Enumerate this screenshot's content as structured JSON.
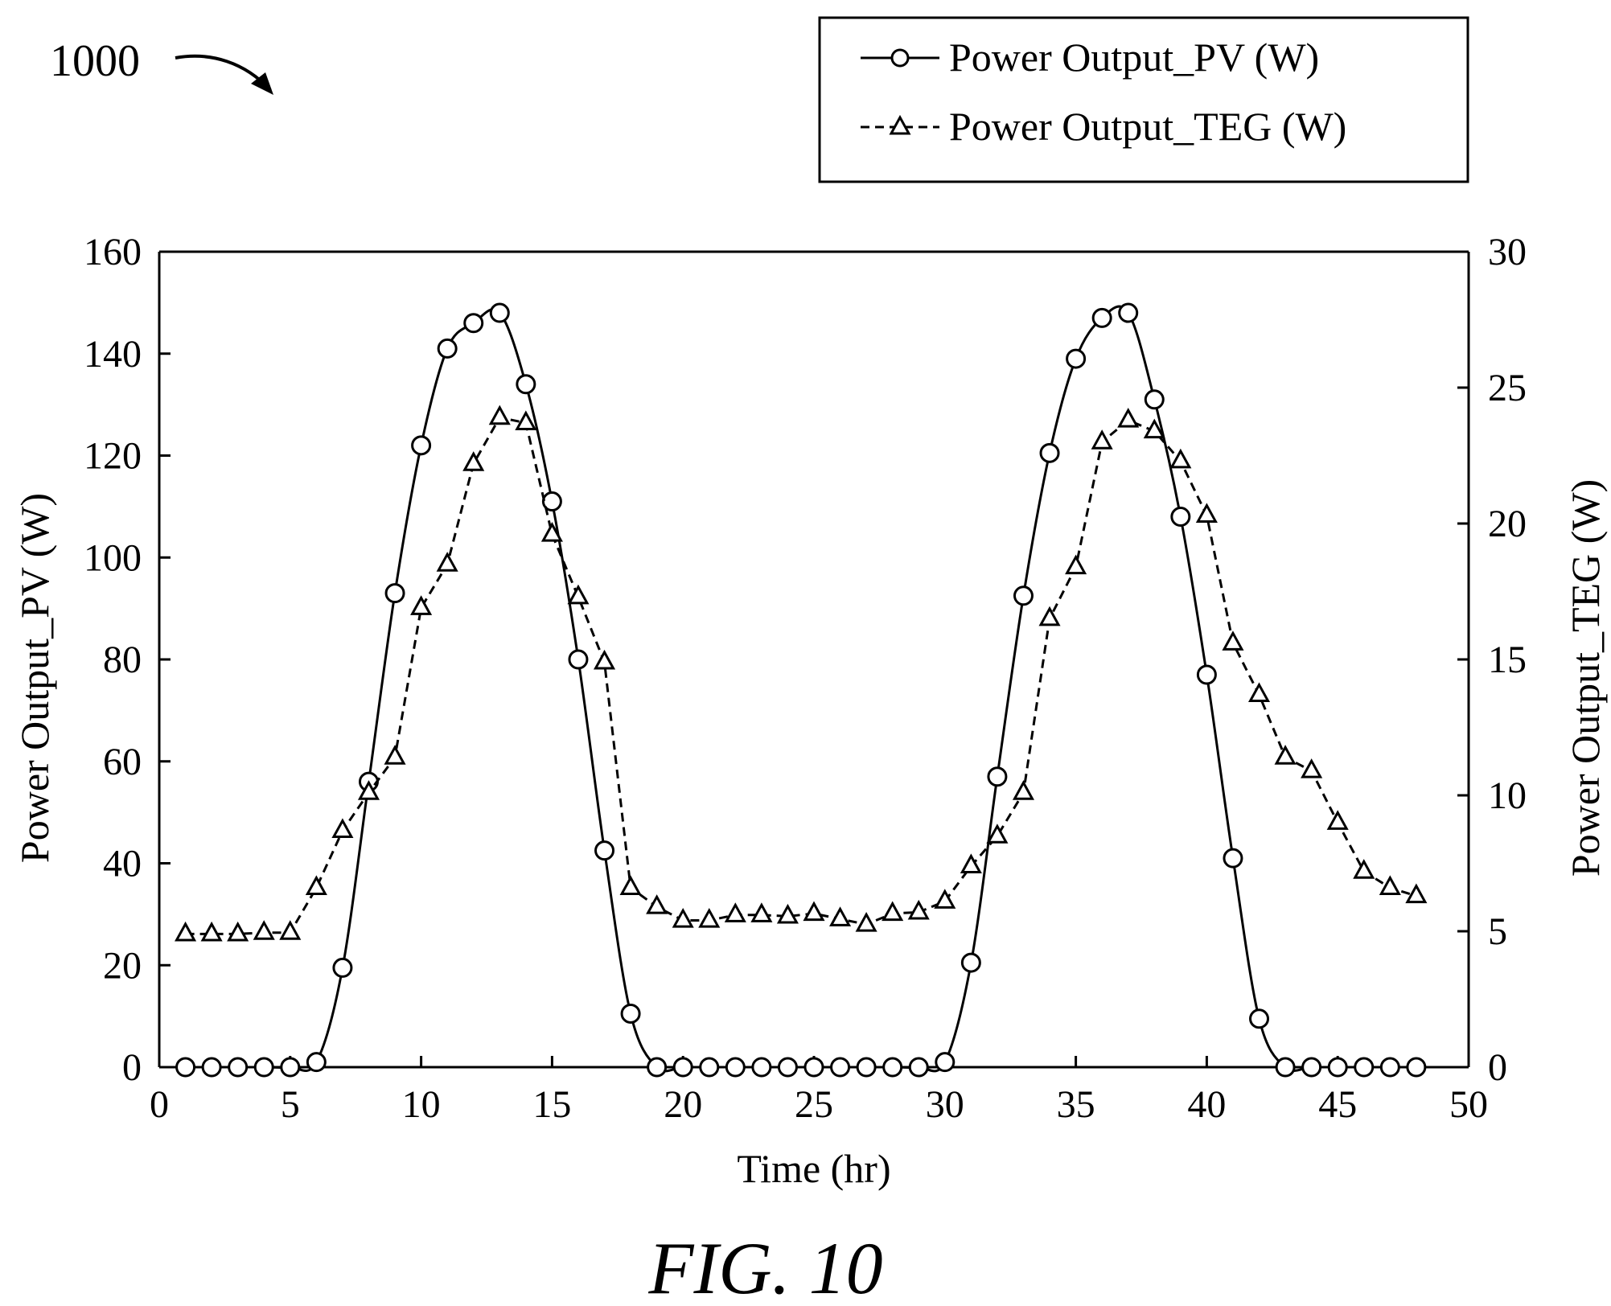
{
  "figure": {
    "reference_numeral": "1000",
    "caption": "FIG. 10"
  },
  "colors": {
    "ink": "#000000",
    "background": "#ffffff"
  },
  "chart_data": {
    "type": "line",
    "dual_axis": true,
    "grid": false,
    "legend_position": "top-right, above plot",
    "xlabel": "Time (hr)",
    "ylabel_left": "Power Output_PV (W)",
    "ylabel_right": "Power Output_TEG (W)",
    "xlim": [
      0,
      50
    ],
    "ylim_left": [
      0,
      160
    ],
    "ylim_right": [
      0,
      30
    ],
    "x_ticks": [
      0,
      5,
      10,
      15,
      20,
      25,
      30,
      35,
      40,
      45,
      50
    ],
    "y_ticks_left": [
      0,
      20,
      40,
      60,
      80,
      100,
      120,
      140,
      160
    ],
    "y_ticks_right": [
      0,
      5,
      10,
      15,
      20,
      25,
      30
    ],
    "series": [
      {
        "name": "Power Output_PV (W)",
        "axis": "left",
        "marker": "circle",
        "line_style": "solid",
        "smooth": true,
        "x": [
          1,
          2,
          3,
          4,
          5,
          6,
          7,
          8,
          9,
          10,
          11,
          12,
          13,
          14,
          15,
          16,
          17,
          18,
          19,
          20,
          21,
          22,
          23,
          24,
          25,
          26,
          27,
          28,
          29,
          30,
          31,
          32,
          33,
          34,
          35,
          36,
          37,
          38,
          39,
          40,
          41,
          42,
          43,
          44,
          45,
          46,
          47,
          48
        ],
        "values": [
          0,
          0,
          0,
          0,
          0,
          1,
          19.5,
          56,
          93,
          122,
          141,
          146,
          148,
          134,
          111,
          80,
          42.5,
          10.5,
          0,
          0,
          0,
          0,
          0,
          0,
          0,
          0,
          0,
          0,
          0,
          1,
          20.5,
          57,
          92.5,
          120.5,
          139,
          147,
          148,
          131,
          108,
          77,
          41,
          9.5,
          0,
          0,
          0,
          0,
          0,
          0
        ]
      },
      {
        "name": "Power Output_TEG (W)",
        "axis": "right",
        "marker": "triangle",
        "line_style": "dashed",
        "smooth": false,
        "x": [
          1,
          2,
          3,
          4,
          5,
          6,
          7,
          8,
          9,
          10,
          11,
          12,
          13,
          14,
          15,
          16,
          17,
          18,
          19,
          20,
          21,
          22,
          23,
          24,
          25,
          26,
          27,
          28,
          29,
          30,
          31,
          32,
          33,
          34,
          35,
          36,
          37,
          38,
          39,
          40,
          41,
          42,
          43,
          44,
          45,
          46,
          47,
          48
        ],
        "values": [
          4.9,
          4.9,
          4.9,
          4.95,
          4.95,
          6.6,
          8.7,
          10.1,
          11.4,
          16.9,
          18.5,
          22.2,
          23.9,
          23.7,
          19.6,
          17.3,
          14.9,
          6.6,
          5.9,
          5.4,
          5.4,
          5.6,
          5.6,
          5.55,
          5.65,
          5.45,
          5.25,
          5.65,
          5.7,
          6.1,
          7.4,
          8.5,
          10.1,
          16.5,
          18.4,
          23,
          23.8,
          23.4,
          22.3,
          20.3,
          15.6,
          13.7,
          11.4,
          10.9,
          9,
          7.2,
          6.6,
          6.3
        ]
      }
    ]
  }
}
